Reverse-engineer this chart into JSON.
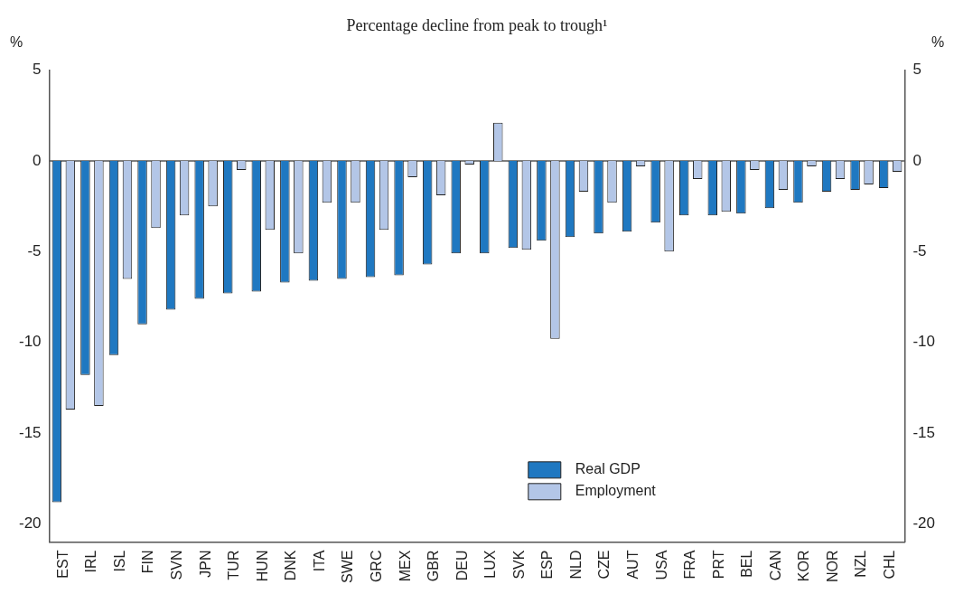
{
  "chart_data": {
    "type": "bar",
    "title": "Percentage decline from peak to trough¹",
    "ylabel": "%",
    "y2label": "%",
    "categories": [
      "EST",
      "IRL",
      "ISL",
      "FIN",
      "SVN",
      "JPN",
      "TUR",
      "HUN",
      "DNK",
      "ITA",
      "SWE",
      "GRC",
      "MEX",
      "GBR",
      "DEU",
      "LUX",
      "SVK",
      "ESP",
      "NLD",
      "CZE",
      "AUT",
      "USA",
      "FRA",
      "PRT",
      "BEL",
      "CAN",
      "KOR",
      "NOR",
      "NZL",
      "CHL"
    ],
    "series": [
      {
        "name": "Real GDP",
        "color": "#1f78c1",
        "values": [
          -18.8,
          -11.8,
          -10.7,
          -9.0,
          -8.2,
          -7.6,
          -7.3,
          -7.2,
          -6.7,
          -6.6,
          -6.5,
          -6.4,
          -6.3,
          -5.7,
          -5.1,
          -5.1,
          -4.8,
          -4.4,
          -4.2,
          -4.0,
          -3.9,
          -3.4,
          -3.0,
          -3.0,
          -2.9,
          -2.6,
          -2.3,
          -1.7,
          -1.6,
          -1.5
        ]
      },
      {
        "name": "Employment",
        "color": "#b3c6e7",
        "values": [
          -13.7,
          -13.5,
          -6.5,
          -3.7,
          -3.0,
          -2.5,
          -0.5,
          -3.8,
          -5.1,
          -2.3,
          -2.3,
          -3.8,
          -0.9,
          -1.9,
          -0.2,
          2.1,
          -4.9,
          -9.8,
          -1.7,
          -2.3,
          -0.3,
          -5.0,
          -1.0,
          -2.8,
          -0.5,
          -1.6,
          -0.3,
          -1.0,
          -1.3,
          -0.6
        ]
      }
    ],
    "ylim": [
      -21,
      5
    ],
    "yticks": [
      5,
      0,
      -5,
      -10,
      -15,
      -20
    ],
    "y2lim": [
      -21,
      5
    ],
    "y2ticks": [
      5,
      0,
      -5,
      -10,
      -15,
      -20
    ],
    "ref_lines": [
      {
        "axis": "y",
        "value": 0,
        "color": "#555555"
      }
    ],
    "grid": false,
    "legend": "bottom right"
  }
}
